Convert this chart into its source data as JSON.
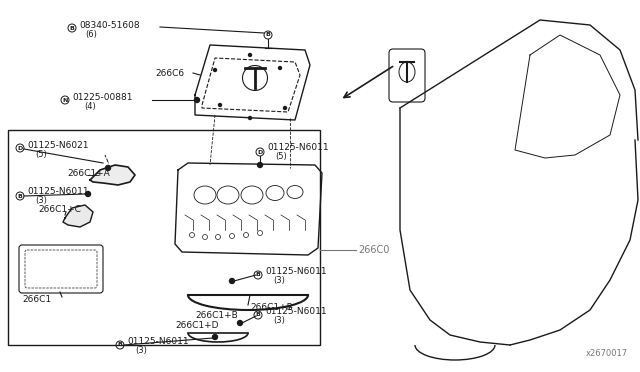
{
  "bg_color": "#ffffff",
  "lc": "#1a1a1a",
  "gray": "#777777",
  "fig_width": 6.4,
  "fig_height": 3.72,
  "dpi": 100,
  "watermark": "x2670017",
  "p1": "08340-51608",
  "p1q": "(6)",
  "p2": "266C6",
  "p3": "01225-00881",
  "p3q": "(4)",
  "p4": "01125-N6021",
  "p4q": "(5)",
  "p5": "266C1+A",
  "p6": "01125-N6011",
  "p6q": "(3)",
  "p7": "266C1+C",
  "p8": "266C1",
  "p9": "01125-N6011",
  "p9q": "(5)",
  "p10": "266C1+B",
  "p11": "266C0",
  "p12": "01125-N6011",
  "p12q": "(3)",
  "p13": "266C1+D",
  "p14": "01125-N6011",
  "p14q": "(3)",
  "p15": "01125-N6011",
  "p15q": "(3)"
}
